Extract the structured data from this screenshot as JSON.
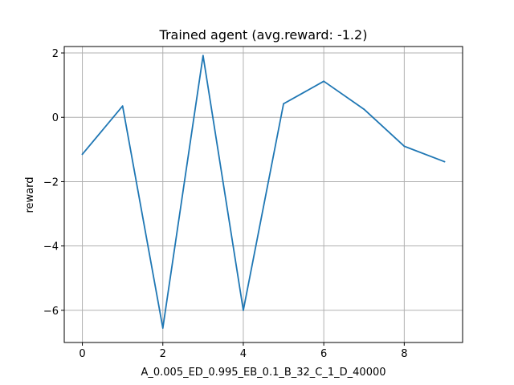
{
  "chart_data": {
    "type": "line",
    "title": "Trained agent (avg.reward: -1.2)",
    "xlabel": "A_0.005_ED_0.995_EB_0.1_B_32_C_1_D_40000",
    "ylabel": "reward",
    "xlim": [
      -0.45,
      9.45
    ],
    "ylim": [
      -7.0,
      2.2
    ],
    "xticks": [
      0,
      2,
      4,
      6,
      8
    ],
    "xtick_labels": [
      "0",
      "2",
      "4",
      "6",
      "8"
    ],
    "yticks": [
      2,
      0,
      -2,
      -4,
      -6
    ],
    "ytick_labels": [
      "2",
      "0",
      "−2",
      "−4",
      "−6"
    ],
    "grid": true,
    "series": [
      {
        "color": "#1f77b4",
        "x": [
          0,
          1,
          2,
          3,
          4,
          5,
          6,
          7,
          8,
          9
        ],
        "y": [
          -1.15,
          0.35,
          -6.55,
          1.92,
          -6.0,
          0.42,
          1.12,
          0.25,
          -0.9,
          -1.38
        ]
      }
    ]
  }
}
